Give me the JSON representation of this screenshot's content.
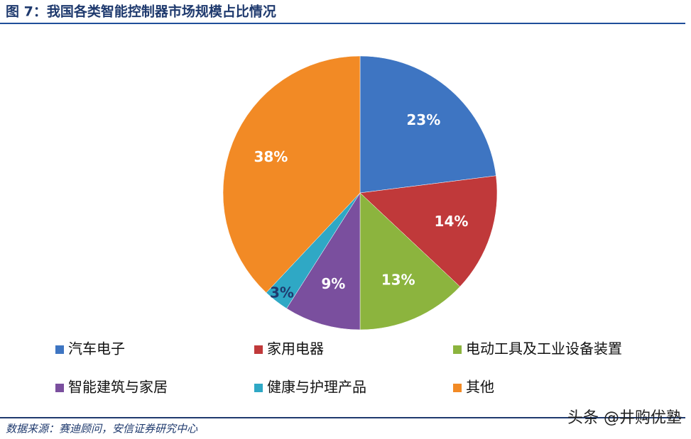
{
  "chart_data": {
    "type": "pie",
    "title": "图 7：我国各类智能控制器市场规模占比情况",
    "categories": [
      "汽车电子",
      "家用电器",
      "电动工具及工业设备装置",
      "智能建筑与家居",
      "健康与护理产品",
      "其他"
    ],
    "values": [
      23,
      14,
      13,
      9,
      3,
      38
    ],
    "value_labels": [
      "23%",
      "14%",
      "13%",
      "9%",
      "3%",
      "38%"
    ],
    "colors": [
      "#3e75c2",
      "#c0393a",
      "#8cb43e",
      "#7a4f9e",
      "#2fa8c5",
      "#f28a25"
    ],
    "source": "数据来源：赛迪顾问，安信证券研究中心",
    "watermark": "头条 @井购优塾"
  }
}
